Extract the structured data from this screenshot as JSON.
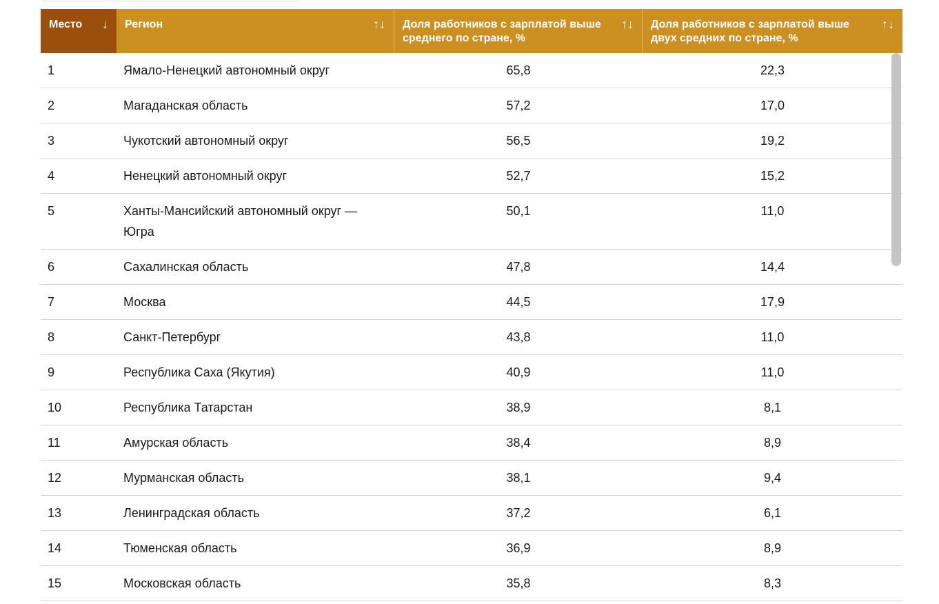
{
  "table": {
    "headers": {
      "rank": "Место",
      "rank_sort": "↓",
      "region": "Регион",
      "region_sort": "↑↓",
      "share_above_avg": "Доля работников с зарплатой выше среднего по стране, %",
      "share_above_avg_sort": "↑↓",
      "share_above_two_avg": "Доля работников с зарплатой выше двух средних по стране, %",
      "share_above_two_avg_sort": "↑↓"
    },
    "rows": [
      {
        "rank": "1",
        "region": "Ямало-Ненецкий автономный округ",
        "share_above_avg": "65,8",
        "share_above_two_avg": "22,3"
      },
      {
        "rank": "2",
        "region": "Магаданская область",
        "share_above_avg": "57,2",
        "share_above_two_avg": "17,0"
      },
      {
        "rank": "3",
        "region": "Чукотский автономный округ",
        "share_above_avg": "56,5",
        "share_above_two_avg": "19,2"
      },
      {
        "rank": "4",
        "region": "Ненецкий автономный округ",
        "share_above_avg": "52,7",
        "share_above_two_avg": "15,2"
      },
      {
        "rank": "5",
        "region": "Ханты-Мансийский автономный округ — Югра",
        "share_above_avg": "50,1",
        "share_above_two_avg": "11,0"
      },
      {
        "rank": "6",
        "region": "Сахалинская область",
        "share_above_avg": "47,8",
        "share_above_two_avg": "14,4"
      },
      {
        "rank": "7",
        "region": "Москва",
        "share_above_avg": "44,5",
        "share_above_two_avg": "17,9"
      },
      {
        "rank": "8",
        "region": "Санкт-Петербург",
        "share_above_avg": "43,8",
        "share_above_two_avg": "11,0"
      },
      {
        "rank": "9",
        "region": "Республика Саха (Якутия)",
        "share_above_avg": "40,9",
        "share_above_two_avg": "11,0"
      },
      {
        "rank": "10",
        "region": "Республика Татарстан",
        "share_above_avg": "38,9",
        "share_above_two_avg": "8,1"
      },
      {
        "rank": "11",
        "region": "Амурская область",
        "share_above_avg": "38,4",
        "share_above_two_avg": "8,9"
      },
      {
        "rank": "12",
        "region": "Мурманская область",
        "share_above_avg": "38,1",
        "share_above_two_avg": "9,4"
      },
      {
        "rank": "13",
        "region": "Ленинградская область",
        "share_above_avg": "37,2",
        "share_above_two_avg": "6,1"
      },
      {
        "rank": "14",
        "region": "Тюменская область",
        "share_above_avg": "36,9",
        "share_above_two_avg": "8,9"
      },
      {
        "rank": "15",
        "region": "Московская область",
        "share_above_avg": "35,8",
        "share_above_two_avg": "8,3"
      }
    ]
  },
  "colors": {
    "header_bg": "#cc8f22",
    "header_active_bg": "#9c4f0a",
    "header_text": "#ffffff",
    "row_divider": "#d4d4d4",
    "scrollbar": "#c4c4c4"
  }
}
